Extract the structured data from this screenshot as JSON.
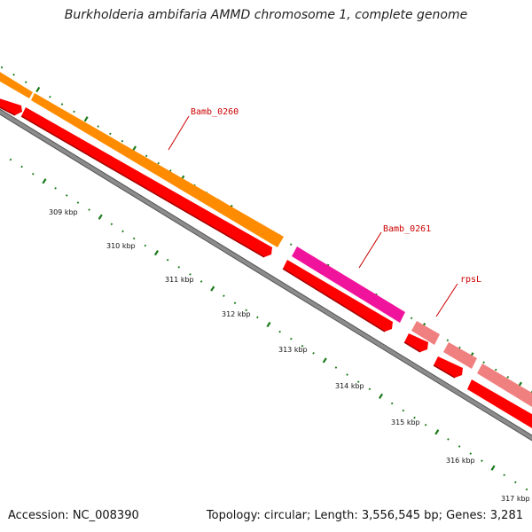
{
  "title": "Burkholderia ambifaria AMMD chromosome 1, complete genome",
  "footer": {
    "accession": "Accession: NC_008390",
    "topology": "Topology: circular; Length: 3,556,545 bp; Genes: 3,281"
  },
  "scale_labels": [
    "309 kbp",
    "310 kbp",
    "311 kbp",
    "312 kbp",
    "313 kbp",
    "314 kbp",
    "315 kbp",
    "316 kbp",
    "317 kbp"
  ],
  "gene_labels": [
    {
      "name": "Bamb_0260",
      "color": "#cc0000"
    },
    {
      "name": "Bamb_0261",
      "color": "#cc0000"
    },
    {
      "name": "rpsL",
      "color": "#cc0000"
    }
  ],
  "colors": {
    "feature_orange": "#ff8c00",
    "feature_magenta": "#f0149c",
    "feature_pink": "#f08080",
    "cds_red": "#ff0000",
    "backbone": "#8c8c8c",
    "ticks": "#1a7a1a",
    "label_red": "#cc0000"
  }
}
